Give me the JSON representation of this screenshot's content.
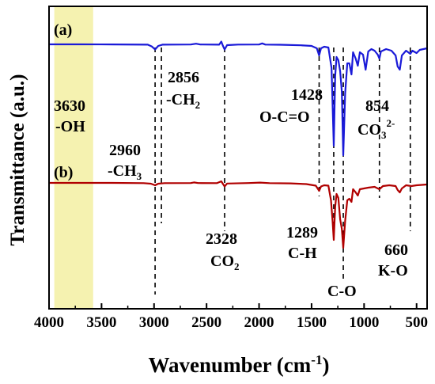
{
  "chart_data": {
    "type": "line",
    "title": "",
    "xlabel": "Wavenumber (cm",
    "xlabel_sup": "-1",
    "xlabel_close": ")",
    "ylabel": "Transmittance (a.u.)",
    "xlim": [
      4000,
      400
    ],
    "x_reversed": true,
    "x_ticks": [
      4000,
      3500,
      3000,
      2500,
      2000,
      1500,
      1000,
      500
    ],
    "shaded_region": {
      "from": 3950,
      "to": 3580,
      "color": "#f5f2b0"
    },
    "series": [
      {
        "name": "(a)",
        "color": "#1a1ad8",
        "points": [
          [
            4000,
            0
          ],
          [
            3700,
            0
          ],
          [
            3400,
            0.1
          ],
          [
            3060,
            0.4
          ],
          [
            3020,
            2.8
          ],
          [
            2990,
            6.5
          ],
          [
            2960,
            2.0
          ],
          [
            2920,
            0.4
          ],
          [
            2800,
            0.3
          ],
          [
            2650,
            0.2
          ],
          [
            2600,
            -0.8
          ],
          [
            2560,
            0.2
          ],
          [
            2380,
            0.4
          ],
          [
            2360,
            -3.5
          ],
          [
            2345,
            1.5
          ],
          [
            2328,
            6.5
          ],
          [
            2305,
            1.0
          ],
          [
            2200,
            0.3
          ],
          [
            2000,
            0.2
          ],
          [
            1970,
            -1.2
          ],
          [
            1940,
            0.3
          ],
          [
            1800,
            0.5
          ],
          [
            1600,
            1.2
          ],
          [
            1500,
            2.0
          ],
          [
            1450,
            5.0
          ],
          [
            1428,
            14
          ],
          [
            1410,
            5
          ],
          [
            1380,
            3.0
          ],
          [
            1340,
            4.0
          ],
          [
            1310,
            30
          ],
          [
            1289,
            128
          ],
          [
            1275,
            40
          ],
          [
            1262,
            16
          ],
          [
            1245,
            20
          ],
          [
            1228,
            34
          ],
          [
            1212,
            60
          ],
          [
            1198,
            140
          ],
          [
            1180,
            62
          ],
          [
            1160,
            24
          ],
          [
            1140,
            24
          ],
          [
            1120,
            38
          ],
          [
            1105,
            10
          ],
          [
            1080,
            18
          ],
          [
            1060,
            27
          ],
          [
            1040,
            10
          ],
          [
            1010,
            13
          ],
          [
            985,
            32
          ],
          [
            960,
            9
          ],
          [
            930,
            6
          ],
          [
            900,
            8
          ],
          [
            870,
            13
          ],
          [
            854,
            18
          ],
          [
            840,
            9
          ],
          [
            790,
            6
          ],
          [
            740,
            8
          ],
          [
            700,
            14
          ],
          [
            680,
            28
          ],
          [
            660,
            32
          ],
          [
            640,
            14
          ],
          [
            600,
            8
          ],
          [
            560,
            12
          ],
          [
            540,
            8
          ],
          [
            500,
            11
          ],
          [
            470,
            7
          ],
          [
            400,
            5
          ]
        ]
      },
      {
        "name": "(b)",
        "color": "#b00000",
        "points": [
          [
            4000,
            0
          ],
          [
            3700,
            0
          ],
          [
            3400,
            0
          ],
          [
            3100,
            0.3
          ],
          [
            3030,
            1.0
          ],
          [
            2990,
            3.0
          ],
          [
            2960,
            1.0
          ],
          [
            2900,
            0.3
          ],
          [
            2650,
            0.2
          ],
          [
            2620,
            -0.6
          ],
          [
            2580,
            0.2
          ],
          [
            2400,
            0.3
          ],
          [
            2360,
            -2.0
          ],
          [
            2345,
            1.0
          ],
          [
            2328,
            4.5
          ],
          [
            2305,
            0.8
          ],
          [
            2100,
            0.2
          ],
          [
            1990,
            -0.4
          ],
          [
            1900,
            0.3
          ],
          [
            1700,
            0.6
          ],
          [
            1550,
            1.5
          ],
          [
            1460,
            3.5
          ],
          [
            1428,
            10
          ],
          [
            1410,
            4.5
          ],
          [
            1380,
            3.0
          ],
          [
            1340,
            3.5
          ],
          [
            1315,
            22
          ],
          [
            1300,
            48
          ],
          [
            1289,
            72
          ],
          [
            1275,
            30
          ],
          [
            1262,
            14
          ],
          [
            1245,
            19
          ],
          [
            1228,
            46
          ],
          [
            1212,
            58
          ],
          [
            1198,
            82
          ],
          [
            1180,
            48
          ],
          [
            1160,
            22
          ],
          [
            1140,
            20
          ],
          [
            1120,
            24
          ],
          [
            1105,
            8
          ],
          [
            1080,
            12
          ],
          [
            1060,
            16
          ],
          [
            1040,
            8
          ],
          [
            1000,
            7
          ],
          [
            960,
            6
          ],
          [
            900,
            5
          ],
          [
            854,
            8
          ],
          [
            820,
            4
          ],
          [
            760,
            3
          ],
          [
            700,
            4
          ],
          [
            680,
            9
          ],
          [
            660,
            12
          ],
          [
            640,
            7
          ],
          [
            600,
            3
          ],
          [
            550,
            4
          ],
          [
            500,
            3
          ],
          [
            400,
            2
          ]
        ]
      }
    ],
    "reference_lines": [
      2990,
      2930,
      2328,
      1428,
      1289,
      1198,
      854,
      560
    ],
    "panel_labels": [
      "(a)",
      "(b)"
    ],
    "annotations": [
      {
        "text": "3630",
        "sub": "",
        "suffix": ""
      },
      {
        "text": "-OH",
        "sub": "",
        "suffix": ""
      },
      {
        "text": "2856",
        "sub": "",
        "suffix": ""
      },
      {
        "text": "-CH",
        "sub": "2",
        "suffix": ""
      },
      {
        "text": "1428",
        "sub": "",
        "suffix": ""
      },
      {
        "text": "O-C=O",
        "sub": "",
        "suffix": ""
      },
      {
        "text": "854",
        "sub": "",
        "suffix": ""
      },
      {
        "text": "CO",
        "sub": "3",
        "sup": "2-",
        "suffix": ""
      },
      {
        "text": "2960",
        "sub": "",
        "suffix": ""
      },
      {
        "text": "-CH",
        "sub": "3",
        "suffix": ""
      },
      {
        "text": "2328",
        "sub": "",
        "suffix": ""
      },
      {
        "text": "CO",
        "sub": "2",
        "suffix": ""
      },
      {
        "text": "1289",
        "sub": "",
        "suffix": ""
      },
      {
        "text": "C-H",
        "sub": "",
        "suffix": ""
      },
      {
        "text": "C-O",
        "sub": "",
        "suffix": ""
      },
      {
        "text": "660",
        "sub": "",
        "suffix": ""
      },
      {
        "text": "K-O",
        "sub": "",
        "suffix": ""
      }
    ]
  }
}
